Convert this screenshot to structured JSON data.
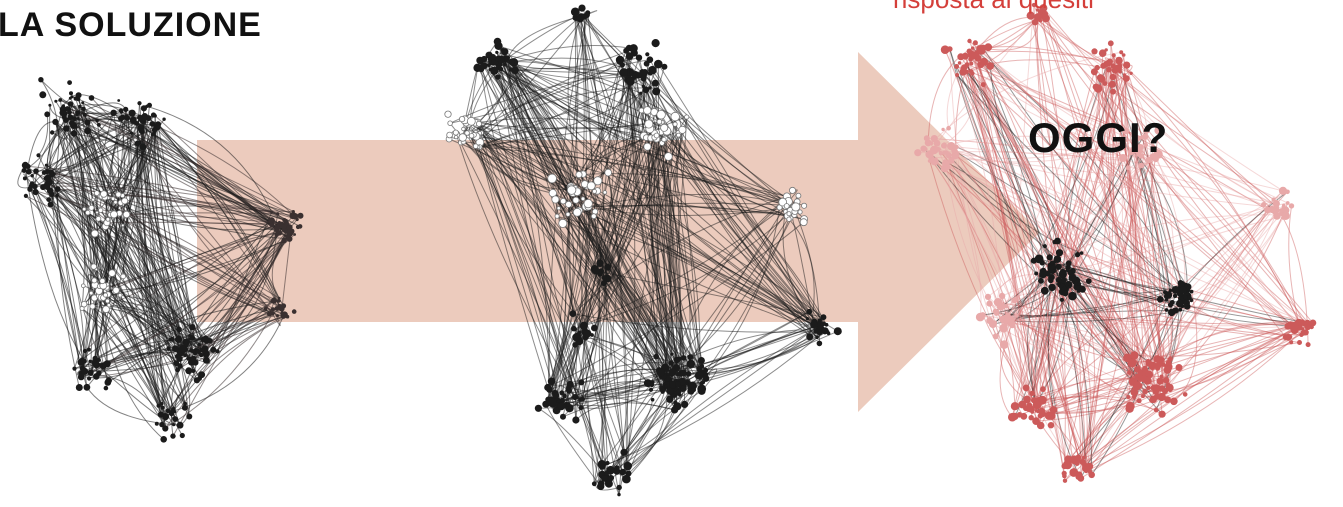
{
  "heading": {
    "title": "LA SOLUZIONE"
  },
  "annotation": {
    "caption": "risposta ai quesiti",
    "question": "OGGI?"
  },
  "colors": {
    "arrow_fill": "#eccbbd",
    "network_dark": "#1b1b1b",
    "network_red": "#cc5a5a",
    "network_pink": "#e8a9a9",
    "caption_red": "#d43f3a"
  },
  "networks": [
    {
      "name": "network-left",
      "style": "dark"
    },
    {
      "name": "network-middle",
      "style": "dark-with-hollow"
    },
    {
      "name": "network-right",
      "style": "red-with-dark-core"
    }
  ],
  "arrow": {
    "direction": "right"
  }
}
